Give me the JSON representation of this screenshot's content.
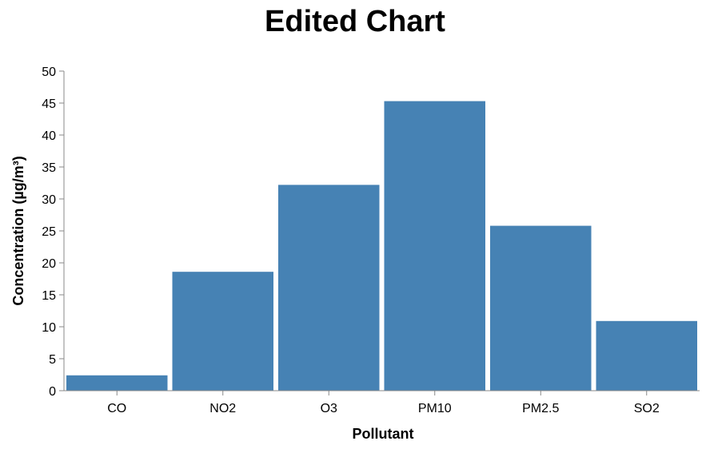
{
  "chart_data": {
    "type": "bar",
    "title": "Edited Chart",
    "xlabel": "Pollutant",
    "ylabel": "Concentration (µg/m³)",
    "categories": [
      "CO",
      "NO2",
      "O3",
      "PM10",
      "PM2.5",
      "SO2"
    ],
    "values": [
      2.4,
      18.6,
      32.2,
      45.3,
      25.8,
      10.9
    ],
    "ylim": [
      0,
      50
    ],
    "yticks": [
      0,
      5,
      10,
      15,
      20,
      25,
      30,
      35,
      40,
      45,
      50
    ],
    "grid": false,
    "bar_color": "#4682b4"
  }
}
